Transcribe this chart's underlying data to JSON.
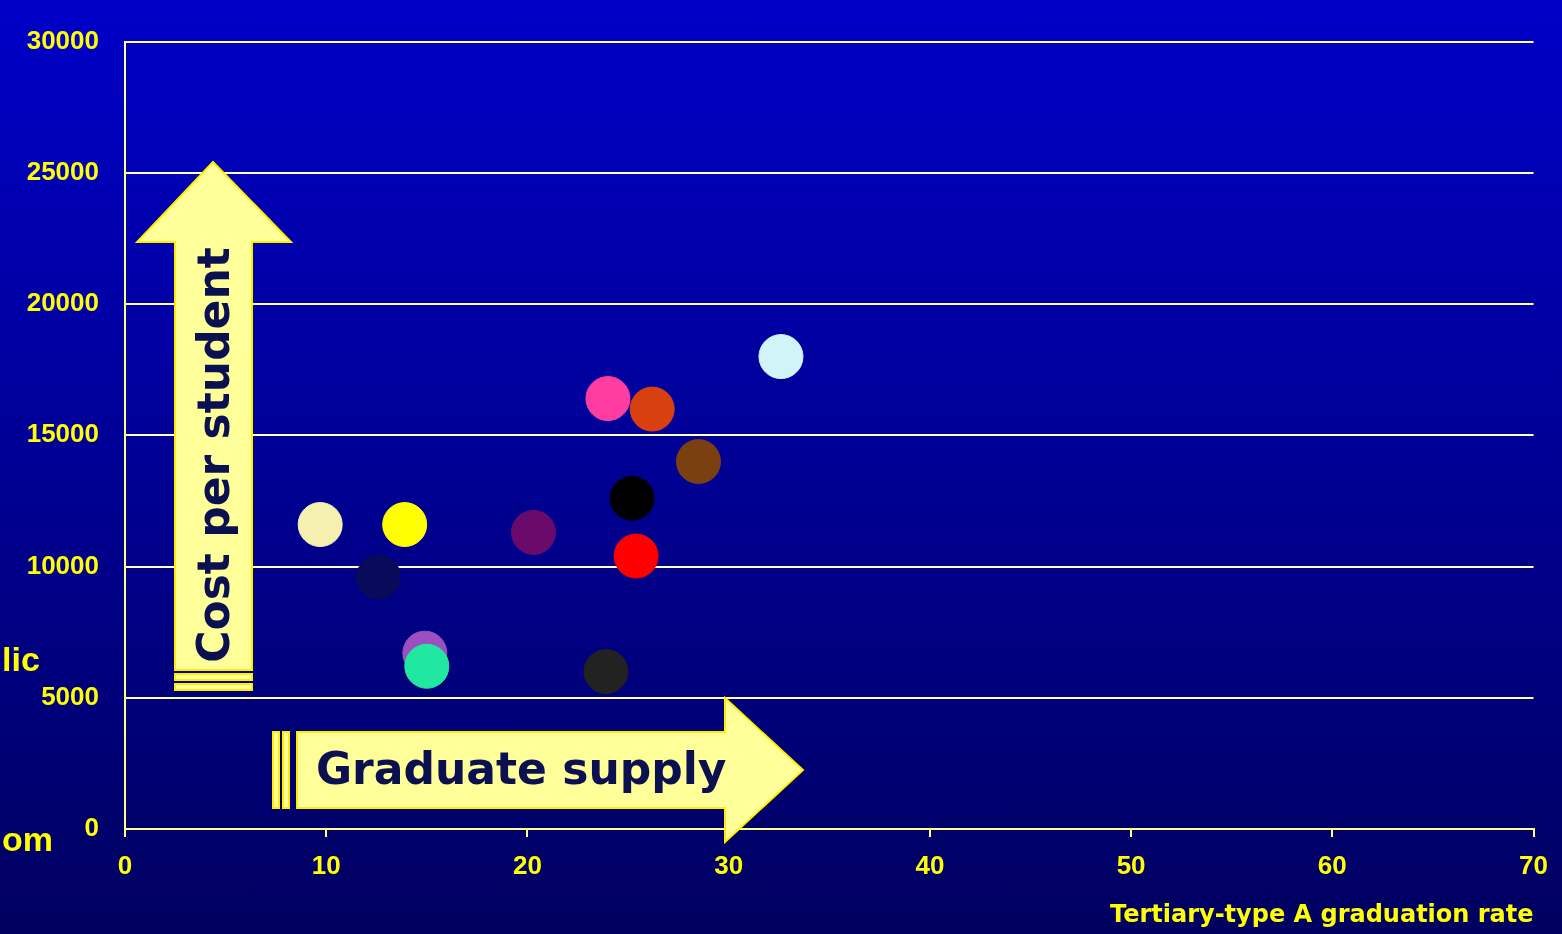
{
  "chart_data": {
    "type": "scatter",
    "xlabel": "Tertiary-type A graduation rate",
    "x": [
      9.7,
      13.9,
      12.6,
      14.9,
      15.0,
      20.3,
      23.9,
      24.0,
      26.2,
      25.2,
      25.4,
      28.5,
      32.6
    ],
    "values": [
      11600,
      11600,
      9600,
      6700,
      6200,
      11300,
      6000,
      16400,
      16000,
      12600,
      10400,
      14000,
      18000
    ],
    "colors": [
      "#f5f0b0",
      "#ffff00",
      "#0a0a5a",
      "#9b4fc0",
      "#20e8a0",
      "#6a0a6a",
      "#222222",
      "#ff3ca0",
      "#d84010",
      "#000000",
      "#ff0000",
      "#7a4010",
      "#d0f4f8"
    ],
    "xlim": [
      0,
      70
    ],
    "xticks": [
      0,
      10,
      20,
      30,
      40,
      50,
      60,
      70
    ],
    "ylim": [
      0,
      30000
    ],
    "yticks": [
      0,
      5000,
      10000,
      15000,
      20000,
      25000,
      30000
    ],
    "grid": "y",
    "marker": "circle",
    "legend": false,
    "annotations": [
      "Cost per student",
      "Graduate supply",
      "lic",
      "om"
    ]
  }
}
